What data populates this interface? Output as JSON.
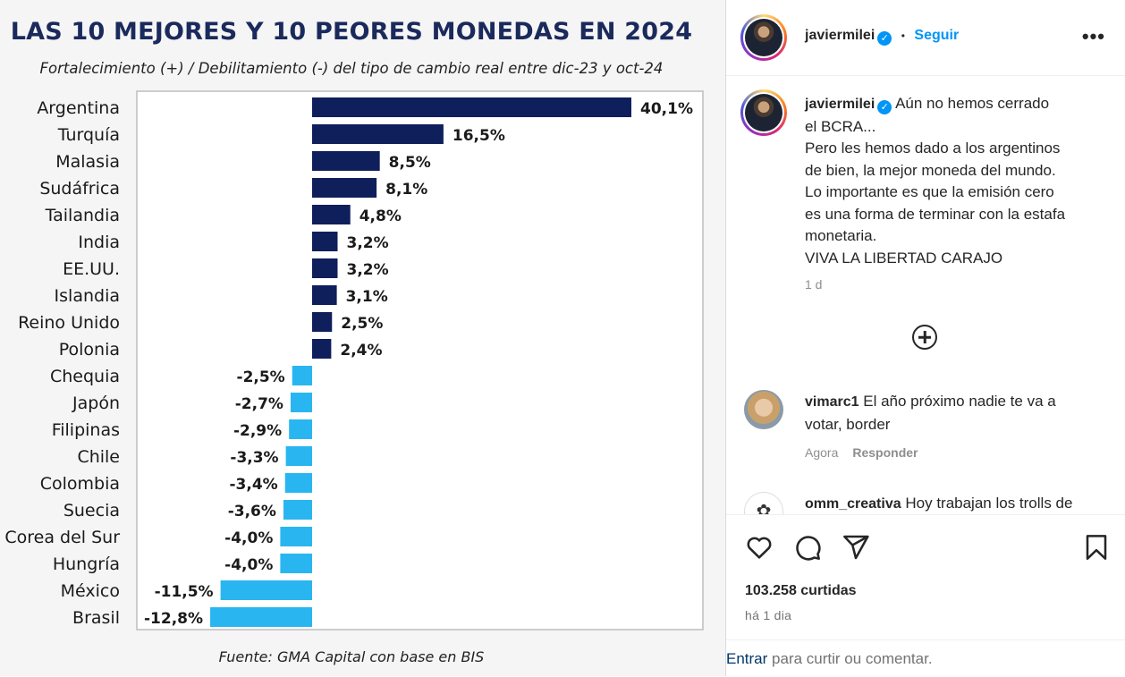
{
  "chart_data": {
    "type": "bar",
    "orientation": "horizontal",
    "title": "LAS 10 MEJORES Y 10 PEORES MONEDAS EN 2024",
    "subtitle": "Fortalecimiento (+) / Debilitamiento (-) del tipo de cambio real entre dic-23 y oct-24",
    "source": "Fuente: GMA Capital con base en BIS",
    "categories": [
      "Argentina",
      "Turquía",
      "Malasia",
      "Sudáfrica",
      "Tailandia",
      "India",
      "EE.UU.",
      "Islandia",
      "Reino Unido",
      "Polonia",
      "Chequia",
      "Japón",
      "Filipinas",
      "Chile",
      "Colombia",
      "Suecia",
      "Corea del Sur",
      "Hungría",
      "México",
      "Brasil"
    ],
    "values": [
      40.1,
      16.5,
      8.5,
      8.1,
      4.8,
      3.2,
      3.2,
      3.1,
      2.5,
      2.4,
      -2.5,
      -2.7,
      -2.9,
      -3.3,
      -3.4,
      -3.6,
      -4.0,
      -4.0,
      -11.5,
      -12.8
    ],
    "labels": [
      "40,1%",
      "16,5%",
      "8,5%",
      "8,1%",
      "4,8%",
      "3,2%",
      "3,2%",
      "3,1%",
      "2,5%",
      "2,4%",
      "-2,5%",
      "-2,7%",
      "-2,9%",
      "-3,3%",
      "-3,4%",
      "-3,6%",
      "-4,0%",
      "-4,0%",
      "-11,5%",
      "-12,8%"
    ],
    "colors": {
      "positive": "#0f1f5c",
      "negative": "#29b6f0"
    },
    "xlabel": "",
    "ylabel": "",
    "xlim": [
      -15,
      42
    ]
  },
  "header": {
    "username": "javiermilei",
    "separator": "•",
    "follow_label": "Seguir"
  },
  "caption": {
    "username": "javiermilei",
    "lines": [
      "Aún no hemos cerrado",
      "el BCRA...",
      "Pero les hemos dado a los argentinos",
      "de bien, la mejor moneda del mundo.",
      "Lo importante es que la emisión cero",
      "es una forma de terminar con la estafa",
      "monetaria.",
      "VIVA LA LIBERTAD CARAJO"
    ],
    "time": "1 d"
  },
  "comments": [
    {
      "username": "vimarc1",
      "text_line1": "El año próximo nadie te va a",
      "text_line2": "votar, border",
      "time": "Agora",
      "reply_label": "Responder"
    },
    {
      "username": "omm_creativa",
      "text_line1": "Hoy trabajan los trolls de"
    }
  ],
  "actions": {
    "likes": "103.258 curtidas",
    "time": "há 1 dia"
  },
  "comment_box": {
    "login_link": "Entrar",
    "placeholder": "para curtir ou comentar."
  },
  "icons": {
    "accent": "#0095f6"
  }
}
